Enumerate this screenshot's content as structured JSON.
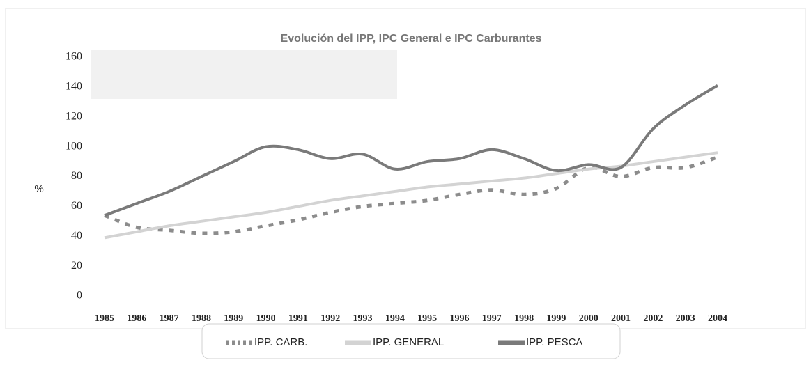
{
  "chart_data": {
    "type": "line",
    "title": "Evolución del IPP, IPC General e IPC Carburantes",
    "y_label": "%",
    "categories": [
      "1985",
      "1986",
      "1987",
      "1988",
      "1989",
      "1990",
      "1991",
      "1992",
      "1993",
      "1994",
      "1995",
      "1996",
      "1997",
      "1998",
      "1999",
      "2000",
      "2001",
      "2002",
      "2003",
      "2004"
    ],
    "series": [
      {
        "name": "IPP. CARB.",
        "color": "#8c8c8c",
        "style": "dashed",
        "values": [
          54,
          46,
          44,
          42,
          43,
          47,
          51,
          56,
          60,
          62,
          64,
          68,
          71,
          68,
          72,
          86,
          80,
          86,
          86,
          93
        ]
      },
      {
        "name": "IPP. GENERAL",
        "color": "#d3d3d3",
        "style": "solid",
        "values": [
          39,
          43,
          47,
          50,
          53,
          56,
          60,
          64,
          67,
          70,
          73,
          75,
          77,
          79,
          82,
          85,
          87,
          90,
          93,
          96
        ]
      },
      {
        "name": "IPP. PESCA",
        "color": "#7a7a7a",
        "style": "solid",
        "values": [
          54,
          62,
          70,
          80,
          90,
          100,
          98,
          92,
          95,
          85,
          90,
          92,
          98,
          92,
          84,
          88,
          86,
          112,
          128,
          141
        ]
      }
    ],
    "ylim": [
      0,
      160
    ],
    "yticks": [
      0,
      20,
      40,
      60,
      80,
      100,
      120,
      140,
      160
    ],
    "legend": "bottom"
  }
}
